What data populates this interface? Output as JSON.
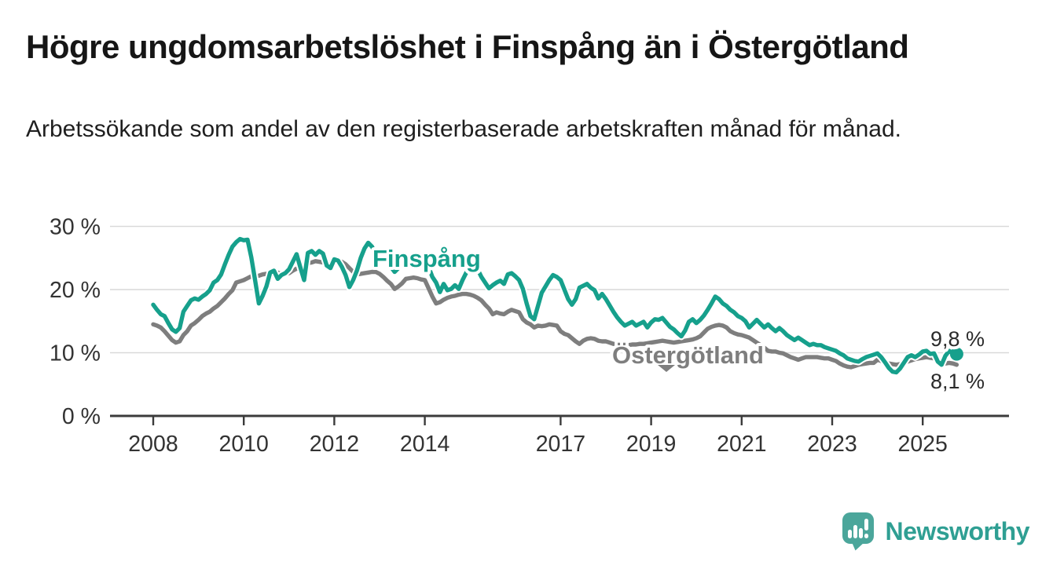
{
  "header": {
    "title": "Högre ungdomsarbetslöshet i Finspång än i Östergötland",
    "subtitle": "Arbetssökande som andel av den registerbaserade arbetskraften månad för månad."
  },
  "chart_data": {
    "type": "line",
    "unit": "%",
    "x_start": {
      "year": 2008,
      "month": 1
    },
    "x_end": {
      "year": 2025,
      "month": 10
    },
    "x_tick_years": [
      2008,
      2010,
      2012,
      2014,
      2017,
      2019,
      2021,
      2023,
      2025
    ],
    "y_ticks": [
      {
        "value": 0,
        "label": "0 %"
      },
      {
        "value": 10,
        "label": "10 %"
      },
      {
        "value": 20,
        "label": "20 %"
      },
      {
        "value": 30,
        "label": "30 %"
      }
    ],
    "ylim": [
      0,
      31
    ],
    "grid": true,
    "legend_position": "inline-labels",
    "colors": {
      "finspang": "#16a08c",
      "ostergotland": "#7e7e7e",
      "axis": "#3b3b3b",
      "gridline": "#d9d9d9",
      "tick_text": "#333333",
      "end_label_text": "#2b2b2b"
    },
    "series": [
      {
        "name": "Finspång",
        "color": "#16a08c",
        "end_label": "9,8 %",
        "end_value": 9.8,
        "values": [
          17.6,
          16.8,
          16.1,
          15.8,
          14.7,
          13.7,
          13.3,
          13.9,
          16.5,
          17.4,
          18.3,
          18.6,
          18.4,
          18.9,
          19.3,
          19.9,
          21.1,
          21.5,
          22.4,
          24.0,
          25.5,
          26.8,
          27.5,
          28.0,
          27.8,
          27.9,
          25.1,
          21.5,
          17.8,
          19.0,
          20.5,
          22.7,
          23.0,
          21.7,
          22.3,
          22.6,
          23.2,
          24.4,
          25.6,
          23.5,
          21.5,
          25.8,
          26.1,
          25.5,
          26.1,
          25.7,
          23.8,
          23.4,
          24.8,
          24.6,
          23.6,
          22.3,
          20.4,
          21.5,
          23.0,
          25.0,
          26.5,
          27.4,
          26.8,
          25.5,
          26.0,
          25.2,
          24.4,
          23.6,
          22.8,
          23.4,
          24.2,
          24.8,
          24.4,
          24.0,
          23.8,
          23.7,
          23.8,
          23.6,
          22.0,
          21.1,
          19.6,
          20.9,
          19.9,
          20.1,
          20.7,
          20.1,
          21.5,
          22.7,
          23.4,
          23.3,
          23.2,
          22.0,
          21.1,
          20.2,
          20.7,
          21.1,
          21.4,
          20.9,
          22.4,
          22.6,
          22.1,
          21.5,
          20.1,
          17.8,
          15.8,
          15.3,
          17.4,
          19.5,
          20.5,
          21.5,
          22.3,
          22.0,
          21.5,
          20.0,
          18.5,
          17.6,
          18.5,
          20.3,
          20.6,
          20.9,
          20.3,
          19.9,
          18.6,
          19.3,
          18.5,
          17.5,
          16.5,
          15.6,
          14.9,
          14.3,
          14.6,
          14.9,
          14.3,
          14.6,
          14.9,
          14.0,
          14.8,
          15.3,
          15.2,
          15.5,
          14.8,
          14.1,
          13.7,
          13.1,
          12.6,
          13.5,
          14.9,
          15.3,
          14.7,
          15.2,
          15.9,
          16.8,
          17.8,
          18.9,
          18.5,
          17.8,
          17.4,
          16.8,
          16.4,
          15.8,
          15.5,
          15.0,
          14.0,
          14.6,
          15.2,
          14.6,
          14.0,
          14.5,
          13.9,
          13.4,
          13.9,
          13.4,
          12.8,
          12.4,
          12.0,
          12.4,
          12.0,
          11.6,
          11.2,
          11.4,
          11.2,
          11.2,
          10.9,
          10.7,
          10.5,
          10.3,
          9.9,
          9.6,
          9.1,
          8.9,
          8.7,
          8.6,
          9.0,
          9.3,
          9.5,
          9.7,
          9.9,
          9.3,
          8.5,
          7.6,
          7.0,
          6.9,
          7.5,
          8.4,
          9.3,
          9.6,
          9.3,
          9.7,
          10.2,
          10.3,
          9.8,
          9.9,
          8.6,
          8.1,
          9.5,
          10.3,
          9.9,
          9.8
        ]
      },
      {
        "name": "Östergötland",
        "color": "#7e7e7e",
        "end_label": "8,1 %",
        "end_value": 8.1,
        "values": [
          14.5,
          14.3,
          14.0,
          13.4,
          12.7,
          12.0,
          11.6,
          11.8,
          12.8,
          13.4,
          14.3,
          14.7,
          15.2,
          15.8,
          16.2,
          16.5,
          17.0,
          17.4,
          18.0,
          18.6,
          19.3,
          19.9,
          21.1,
          21.3,
          21.5,
          21.8,
          22.1,
          22.1,
          22.2,
          22.4,
          22.5,
          22.7,
          22.7,
          22.7,
          22.4,
          22.5,
          22.6,
          23.0,
          23.3,
          23.6,
          23.8,
          24.2,
          24.3,
          24.5,
          24.4,
          24.3,
          24.2,
          24.2,
          24.3,
          24.5,
          24.4,
          24.0,
          23.4,
          22.8,
          22.4,
          22.5,
          22.6,
          22.7,
          22.8,
          22.8,
          22.5,
          22.0,
          21.4,
          20.9,
          20.1,
          20.5,
          21.0,
          21.7,
          21.8,
          21.9,
          21.8,
          21.6,
          21.5,
          20.2,
          18.9,
          17.8,
          18.0,
          18.4,
          18.7,
          18.9,
          19.0,
          19.2,
          19.3,
          19.3,
          19.2,
          19.0,
          18.7,
          18.3,
          17.6,
          17.0,
          16.1,
          16.4,
          16.2,
          16.1,
          16.5,
          16.8,
          16.6,
          16.4,
          15.3,
          14.8,
          14.5,
          14.0,
          14.3,
          14.2,
          14.3,
          14.5,
          14.4,
          14.3,
          13.4,
          13.0,
          12.8,
          12.3,
          11.8,
          11.4,
          11.9,
          12.2,
          12.3,
          12.2,
          11.9,
          11.8,
          11.8,
          11.6,
          11.4,
          11.3,
          11.2,
          11.1,
          11.2,
          11.3,
          11.3,
          11.4,
          11.4,
          11.5,
          11.6,
          11.7,
          11.8,
          11.9,
          11.8,
          11.7,
          11.6,
          11.7,
          11.8,
          11.9,
          12.0,
          12.1,
          12.3,
          12.6,
          13.2,
          13.8,
          14.1,
          14.3,
          14.4,
          14.3,
          14.0,
          13.4,
          13.1,
          12.9,
          12.8,
          12.6,
          12.4,
          12.0,
          11.6,
          11.2,
          10.8,
          10.3,
          10.2,
          10.2,
          10.0,
          9.9,
          9.6,
          9.3,
          9.1,
          8.9,
          9.1,
          9.3,
          9.3,
          9.3,
          9.3,
          9.2,
          9.1,
          9.1,
          8.9,
          8.7,
          8.3,
          8.0,
          7.8,
          7.7,
          7.9,
          8.1,
          8.2,
          8.3,
          8.4,
          8.4,
          8.9,
          8.7,
          8.4,
          8.3,
          8.2,
          8.1,
          8.2,
          8.4,
          8.6,
          8.8,
          9.0,
          9.1,
          9.2,
          9.3,
          9.2,
          9.1,
          8.7,
          8.4,
          8.3,
          8.4,
          8.3,
          8.1
        ]
      }
    ]
  },
  "footer": {
    "brand": "Newsworthy"
  }
}
